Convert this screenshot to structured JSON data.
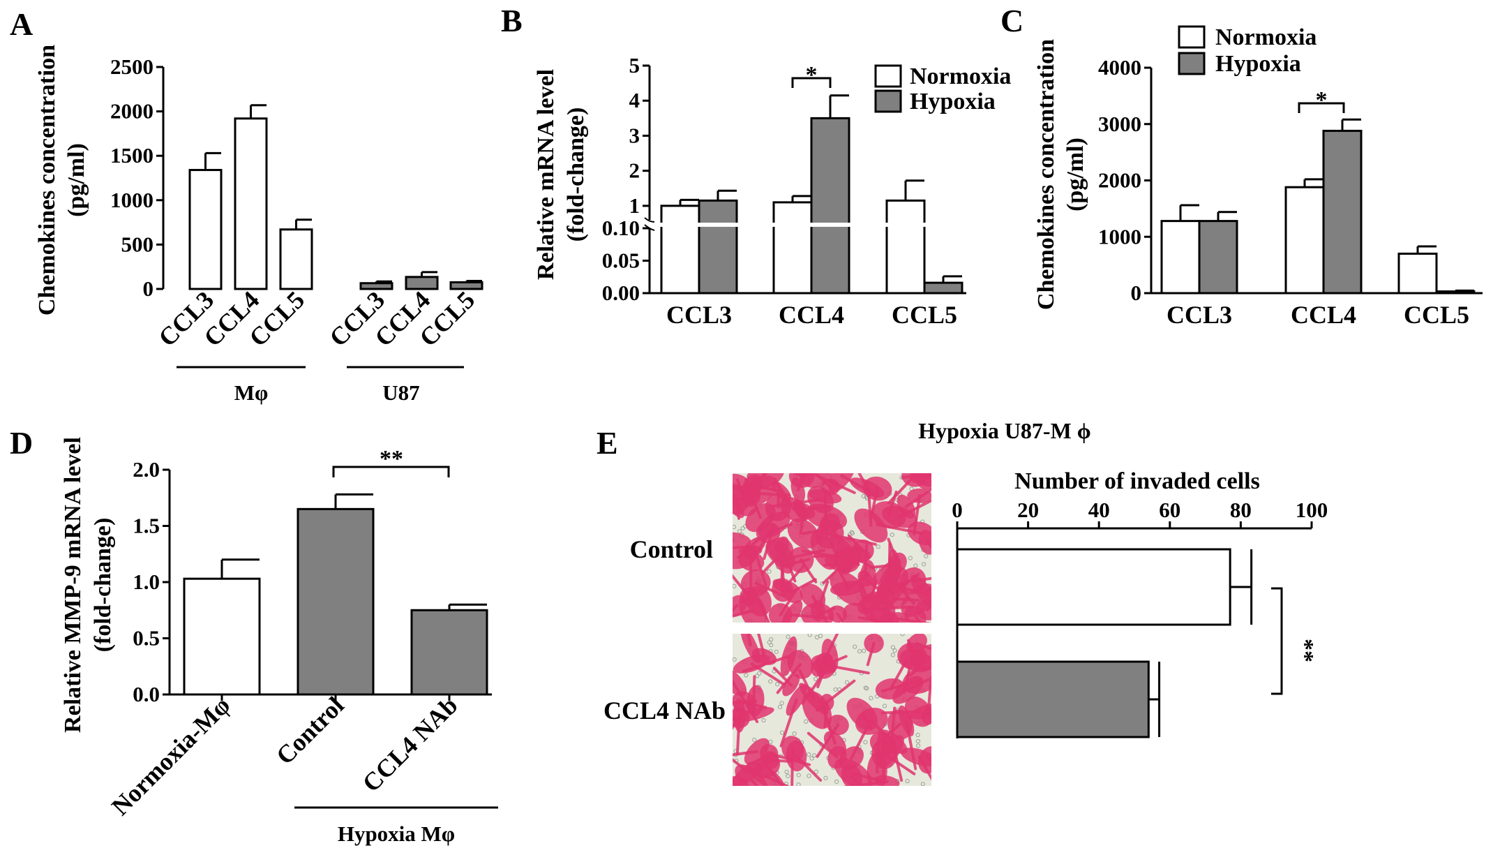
{
  "figure": {
    "colors": {
      "normoxia": "#ffffff",
      "hypoxia": "#808080",
      "stroke": "#000000",
      "stain": "#e0356e",
      "membrane": "#e6e8dc"
    },
    "panels": {
      "A": {
        "letter": "A"
      },
      "B": {
        "letter": "B"
      },
      "C": {
        "letter": "C"
      },
      "D": {
        "letter": "D"
      },
      "E": {
        "letter": "E",
        "title": "Hypoxia U87-M ϕ",
        "row_labels": [
          "Control",
          "CCL4 NAb"
        ],
        "images": [
          {
            "row": "Control",
            "content": "crystal-violet-stained invaded cells, dense"
          },
          {
            "row": "CCL4 NAb",
            "content": "crystal-violet-stained invaded cells, sparser"
          }
        ]
      }
    }
  },
  "chart_data": [
    {
      "panel": "A",
      "type": "bar",
      "ylabel_line1": "Chemokines concentration",
      "ylabel_line2": "(pg/ml)",
      "ylim": [
        0,
        2500
      ],
      "yticks": [
        "0",
        "500",
        "1000",
        "1500",
        "2000",
        "2500"
      ],
      "categories": [
        "CCL3",
        "CCL4",
        "CCL5",
        "CCL3",
        "CCL4",
        "CCL5"
      ],
      "groups": [
        {
          "label": "Mφ",
          "categories": [
            "CCL3",
            "CCL4",
            "CCL5"
          ]
        },
        {
          "label": "U87",
          "categories": [
            "CCL3",
            "CCL4",
            "CCL5"
          ]
        }
      ],
      "values": [
        1340,
        1920,
        670,
        65,
        135,
        75
      ],
      "errors": [
        190,
        150,
        110,
        20,
        55,
        15
      ],
      "fills": [
        "white",
        "white",
        "white",
        "gray",
        "gray",
        "gray"
      ]
    },
    {
      "panel": "B",
      "type": "bar",
      "ylabel_line1": "Relative mRNA level",
      "ylabel_line2": "(fold-change)",
      "axis_break": true,
      "yticks_lower": [
        "0.00",
        "0.05",
        "0.10"
      ],
      "yticks_upper": [
        "1",
        "2",
        "3",
        "4",
        "5"
      ],
      "categories": [
        "CCL3",
        "CCL4",
        "CCL5"
      ],
      "series": [
        {
          "name": "Normoxia",
          "values": [
            1.0,
            1.1,
            1.15
          ],
          "errors": [
            0.17,
            0.18,
            0.57
          ]
        },
        {
          "name": "Hypoxia",
          "values": [
            1.15,
            3.5,
            0.016
          ],
          "errors": [
            0.28,
            0.65,
            0.01
          ]
        }
      ],
      "legend": "top-right",
      "significance": [
        {
          "category": "CCL4",
          "label": "*"
        }
      ]
    },
    {
      "panel": "C",
      "type": "bar",
      "ylabel_line1": "Chemokines concentration",
      "ylabel_line2": "(pg/ml)",
      "ylim": [
        0,
        4000
      ],
      "yticks": [
        "0",
        "1000",
        "2000",
        "3000",
        "4000"
      ],
      "categories": [
        "CCL3",
        "CCL4",
        "CCL5"
      ],
      "series": [
        {
          "name": "Normoxia",
          "values": [
            1280,
            1880,
            700
          ],
          "errors": [
            280,
            140,
            130
          ]
        },
        {
          "name": "Hypoxia",
          "values": [
            1280,
            2880,
            30
          ],
          "errors": [
            160,
            200,
            15
          ]
        }
      ],
      "legend": "top-left",
      "significance": [
        {
          "category": "CCL4",
          "label": "*"
        }
      ]
    },
    {
      "panel": "D",
      "type": "bar",
      "ylabel_line1": "Relative MMP-9 mRNA level",
      "ylabel_line2": "(fold-change)",
      "ylim": [
        0,
        2.0
      ],
      "yticks": [
        "0.0",
        "0.5",
        "1.0",
        "1.5",
        "2.0"
      ],
      "categories": [
        "Normoxia-Mφ",
        "Control",
        "CCL4 NAb"
      ],
      "values": [
        1.03,
        1.65,
        0.75
      ],
      "errors": [
        0.17,
        0.13,
        0.05
      ],
      "fills": [
        "white",
        "gray",
        "gray"
      ],
      "group": {
        "label": "Hypoxia Mφ",
        "categories": [
          "Control",
          "CCL4 NAb"
        ]
      },
      "significance": [
        {
          "from": "Control",
          "to": "CCL4 NAb",
          "label": "**"
        }
      ]
    },
    {
      "panel": "E",
      "type": "bar",
      "orientation": "horizontal",
      "xlabel": "Number of invaded cells",
      "xlim": [
        0,
        100
      ],
      "xticks": [
        "0",
        "20",
        "40",
        "60",
        "80",
        "100"
      ],
      "categories": [
        "Control",
        "CCL4 NAb"
      ],
      "values": [
        77,
        54
      ],
      "errors": [
        6,
        3
      ],
      "fills": [
        "white",
        "gray"
      ],
      "significance": [
        {
          "from": "Control",
          "to": "CCL4 NAb",
          "label": "**"
        }
      ]
    }
  ]
}
